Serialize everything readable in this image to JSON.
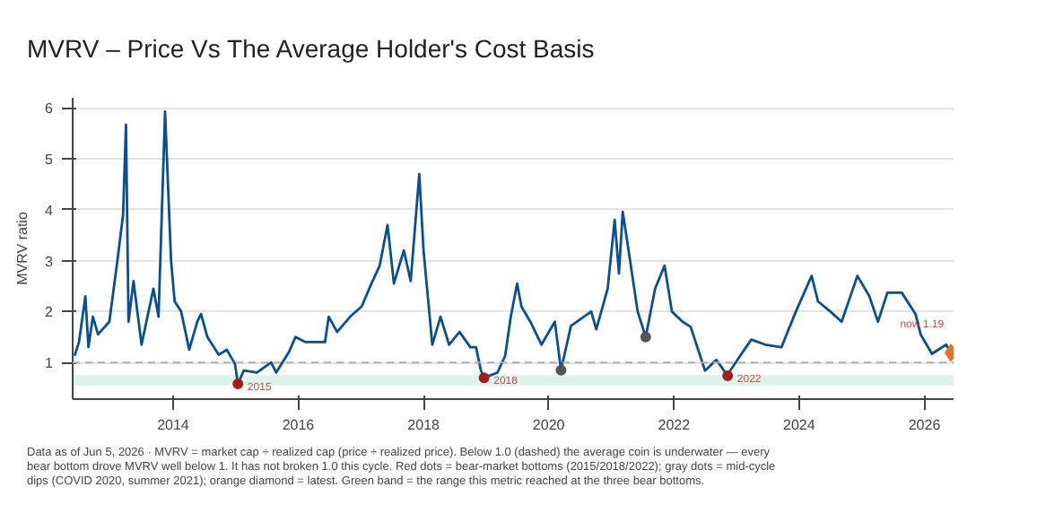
{
  "chart_data": {
    "type": "line",
    "title": "MVRV – Price Vs The Average Holder's Cost Basis",
    "ylabel": "MVRV ratio",
    "xlim": [
      "2012-05-25",
      "2026-06-20"
    ],
    "ylim": [
      0.28,
      6.2
    ],
    "xticks": [
      {
        "value": "2014-01-01",
        "label": "2014"
      },
      {
        "value": "2016-01-01",
        "label": "2016"
      },
      {
        "value": "2018-01-01",
        "label": "2018"
      },
      {
        "value": "2020-01-01",
        "label": "2020"
      },
      {
        "value": "2022-01-01",
        "label": "2022"
      },
      {
        "value": "2024-01-01",
        "label": "2024"
      },
      {
        "value": "2026-01-01",
        "label": "2026"
      }
    ],
    "yticks": [
      1,
      2,
      3,
      4,
      5,
      6
    ],
    "grid": "y",
    "ref_lines": [
      {
        "axis": "y",
        "value": 1,
        "color": "#b0b0b0",
        "line_style": "dashed"
      }
    ],
    "bands": [
      {
        "axis": "y",
        "from": 0.55,
        "to": 0.75,
        "color": "#dff2ec"
      }
    ],
    "series": [
      {
        "color": "#0b4f8c",
        "x": [
          "2012-06-05",
          "2012-07-01",
          "2012-08-07",
          "2012-08-25",
          "2012-09-20",
          "2012-10-20",
          "2012-12-25",
          "2013-02-10",
          "2013-03-15",
          "2013-04-01",
          "2013-04-16",
          "2013-05-15",
          "2013-07-01",
          "2013-09-08",
          "2013-10-08",
          "2013-11-15",
          "2013-12-20",
          "2014-01-10",
          "2014-02-17",
          "2014-04-05",
          "2014-05-22",
          "2014-06-13",
          "2014-07-20",
          "2014-09-24",
          "2014-11-10",
          "2014-12-28",
          "2015-01-14",
          "2015-02-17",
          "2015-05-05",
          "2015-07-27",
          "2015-08-25",
          "2015-11-10",
          "2015-12-16",
          "2016-02-13",
          "2016-06-05",
          "2016-06-27",
          "2016-08-15",
          "2016-10-30",
          "2017-01-05",
          "2017-03-03",
          "2017-04-20",
          "2017-06-05",
          "2017-07-12",
          "2017-09-08",
          "2017-10-18",
          "2017-12-07",
          "2018-01-01",
          "2018-02-06",
          "2018-02-21",
          "2018-04-10",
          "2018-05-30",
          "2018-07-30",
          "2018-10-01",
          "2018-11-03",
          "2018-12-02",
          "2018-12-20",
          "2019-03-08",
          "2019-04-22",
          "2019-05-25",
          "2019-07-01",
          "2019-07-26",
          "2019-09-16",
          "2019-11-20",
          "2020-02-06",
          "2020-03-13",
          "2020-05-10",
          "2020-09-05",
          "2020-10-05",
          "2020-12-10",
          "2021-01-20",
          "2021-02-14",
          "2021-03-08",
          "2021-04-20",
          "2021-06-03",
          "2021-07-20",
          "2021-09-13",
          "2021-11-07",
          "2021-12-20",
          "2022-02-20",
          "2022-04-08",
          "2022-07-01",
          "2022-09-05",
          "2022-11-10",
          "2022-11-25",
          "2023-01-22",
          "2023-03-28",
          "2023-06-17",
          "2023-09-20",
          "2023-12-13",
          "2024-03-14",
          "2024-04-20",
          "2024-07-01",
          "2024-09-05",
          "2024-12-06",
          "2025-02-14",
          "2025-04-05",
          "2025-05-30",
          "2025-08-22",
          "2025-11-10",
          "2025-12-10",
          "2026-02-14",
          "2026-05-08",
          "2026-06-05"
        ],
        "values": [
          1.13,
          1.4,
          2.3,
          1.3,
          1.9,
          1.55,
          1.8,
          3.0,
          3.9,
          5.67,
          1.8,
          2.6,
          1.35,
          2.45,
          1.9,
          5.93,
          3.0,
          2.2,
          2.0,
          1.25,
          1.8,
          1.95,
          1.5,
          1.15,
          1.25,
          0.97,
          0.58,
          0.84,
          0.8,
          1.0,
          0.8,
          1.22,
          1.5,
          1.4,
          1.4,
          1.9,
          1.6,
          1.9,
          2.1,
          2.55,
          2.9,
          3.7,
          2.55,
          3.2,
          2.6,
          4.7,
          3.2,
          1.9,
          1.35,
          1.9,
          1.35,
          1.6,
          1.3,
          1.3,
          0.84,
          0.7,
          0.8,
          1.13,
          1.9,
          2.55,
          2.1,
          1.8,
          1.35,
          1.8,
          0.85,
          1.72,
          2.0,
          1.65,
          2.45,
          3.8,
          2.75,
          3.96,
          3.0,
          2.0,
          1.5,
          2.45,
          2.9,
          2.0,
          1.8,
          1.7,
          0.84,
          1.05,
          0.74,
          0.84,
          1.13,
          1.45,
          1.35,
          1.3,
          2.0,
          2.7,
          2.2,
          2.0,
          1.8,
          2.7,
          2.3,
          1.8,
          2.37,
          2.37,
          1.95,
          1.55,
          1.17,
          1.35,
          1.19
        ]
      },
      {
        "type": "scatter",
        "marker": "circle",
        "color": "#a51c1c",
        "x": [
          "2015-01-14",
          "2018-12-20",
          "2022-11-10"
        ],
        "values": [
          0.58,
          0.7,
          0.74
        ]
      },
      {
        "type": "scatter",
        "marker": "circle",
        "color": "#555555",
        "x": [
          "2020-03-13",
          "2021-07-20"
        ],
        "values": [
          0.85,
          1.5
        ]
      },
      {
        "type": "scatter",
        "marker": "diamond",
        "color": "#e8731e",
        "x": [
          "2026-06-05"
        ],
        "values": [
          1.19
        ]
      }
    ],
    "annotations": [
      {
        "text": "2015",
        "x": "2015-01-14",
        "y": 0.58
      },
      {
        "text": "2018",
        "x": "2018-12-20",
        "y": 0.7
      },
      {
        "text": "2022",
        "x": "2022-11-10",
        "y": 0.74
      },
      {
        "text": "now 1.19",
        "x": "2026-06-05",
        "y": 1.19
      },
      "Data as of Jun 5, 2026 · MVRV = market cap ÷ realized cap (price ÷ realized price). Below 1.0 (dashed) the average coin is underwater — every bear bottom drove MVRV well below 1. It has not broken 1.0 this cycle. Red dots = bear-market bottoms (2015/2018/2022); gray dots = mid-cycle dips (COVID 2020, summer 2021); orange diamond = latest. Green band = the range this metric reached at the three bear bottoms."
    ]
  }
}
